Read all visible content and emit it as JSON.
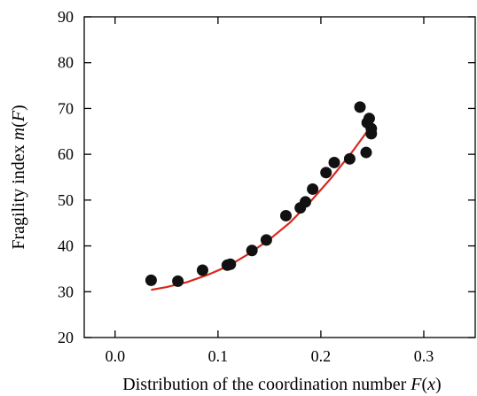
{
  "chart_data": {
    "type": "scatter",
    "title": "",
    "xlabel": "Distribution of the coordination number F(x)",
    "xlabel_parts": [
      "Distribution of the coordination number ",
      "F",
      "(",
      "x",
      ")"
    ],
    "ylabel": "Fragility index m(F)",
    "ylabel_parts": [
      "Fragility index ",
      "m",
      "(",
      "F",
      ")"
    ],
    "xlim": [
      -0.03,
      0.35
    ],
    "ylim": [
      20,
      90
    ],
    "xticks": [
      0.0,
      0.1,
      0.2,
      0.3
    ],
    "xtick_labels": [
      "0.0",
      "0.1",
      "0.2",
      "0.3"
    ],
    "yticks": [
      20,
      30,
      40,
      50,
      60,
      70,
      80,
      90
    ],
    "ytick_labels": [
      "20",
      "30",
      "40",
      "50",
      "60",
      "70",
      "80",
      "90"
    ],
    "grid": false,
    "marker_color": "#111111",
    "fit_color": "#d42a1e",
    "series": [
      {
        "kind": "points",
        "x": [
          0.035,
          0.061,
          0.085,
          0.109,
          0.112,
          0.133,
          0.147,
          0.166,
          0.18,
          0.185,
          0.192,
          0.205,
          0.213,
          0.228,
          0.238,
          0.244,
          0.245,
          0.247,
          0.249,
          0.249
        ],
        "y": [
          32.5,
          32.3,
          34.7,
          35.8,
          36.0,
          39.0,
          41.3,
          46.6,
          48.3,
          49.6,
          52.4,
          56.0,
          58.2,
          59.0,
          70.3,
          60.4,
          66.9,
          67.8,
          64.5,
          65.6
        ]
      },
      {
        "kind": "fit",
        "x": [
          0.035,
          0.05,
          0.07,
          0.09,
          0.11,
          0.13,
          0.15,
          0.17,
          0.19,
          0.21,
          0.23,
          0.25
        ],
        "y": [
          30.4,
          31.0,
          32.1,
          33.7,
          35.6,
          38.3,
          41.4,
          45.1,
          49.7,
          54.8,
          60.4,
          66.5
        ]
      }
    ]
  }
}
